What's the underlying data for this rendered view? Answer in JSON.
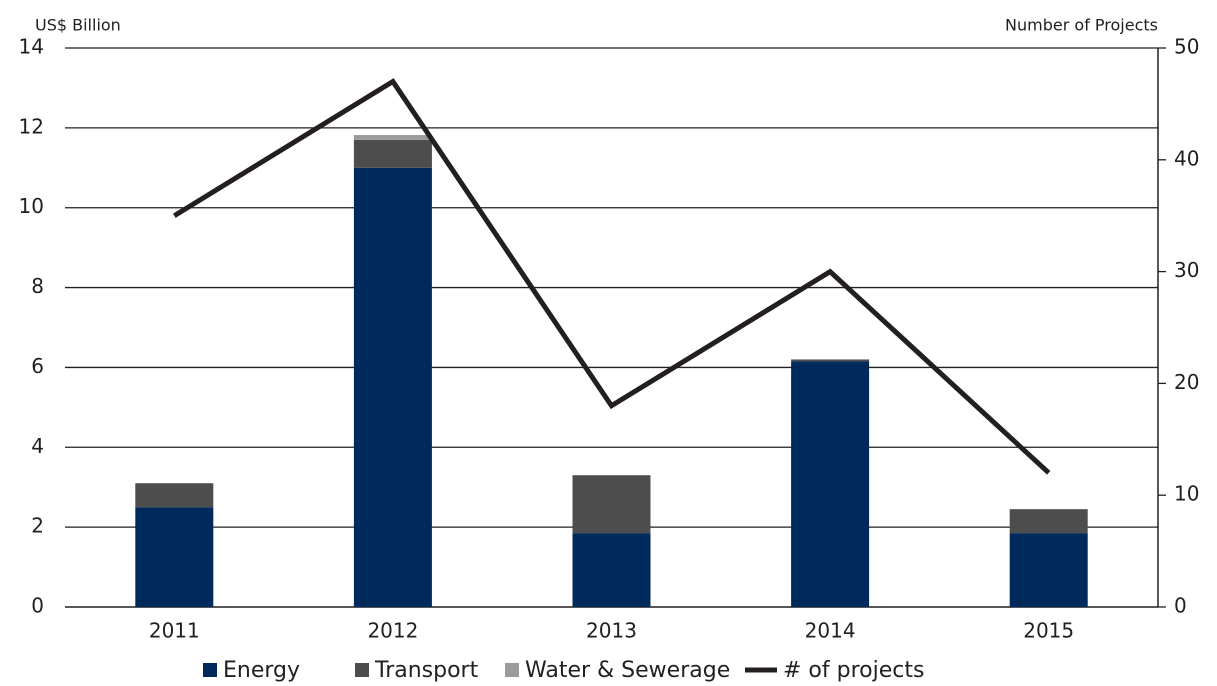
{
  "chart_data": {
    "type": "bar",
    "stacked": true,
    "y_axis_label": "US$ Billion",
    "y2_axis_label": "Number of Projects",
    "categories": [
      "2011",
      "2012",
      "2013",
      "2014",
      "2015"
    ],
    "series": [
      {
        "name": "Energy",
        "color": "#002a5c",
        "values": [
          2.5,
          11.0,
          1.85,
          6.15,
          1.85
        ]
      },
      {
        "name": "Transport",
        "color": "#4d4d4d",
        "values": [
          0.6,
          0.7,
          1.45,
          0.05,
          0.6
        ]
      },
      {
        "name": "Water & Sewerage",
        "color": "#9b9b9b",
        "values": [
          0,
          0.12,
          0,
          0,
          0
        ]
      },
      {
        "name": "# of projects",
        "color": "#231f20",
        "type": "line",
        "axis": "y2",
        "values": [
          35,
          47,
          18,
          30,
          12
        ]
      }
    ],
    "ylim": [
      0,
      14
    ],
    "yticks": [
      0,
      2,
      4,
      6,
      8,
      10,
      12,
      14
    ],
    "y2lim": [
      0,
      50
    ],
    "y2ticks": [
      0,
      10,
      20,
      30,
      40,
      50
    ],
    "grid": true,
    "legend": "bottom"
  }
}
